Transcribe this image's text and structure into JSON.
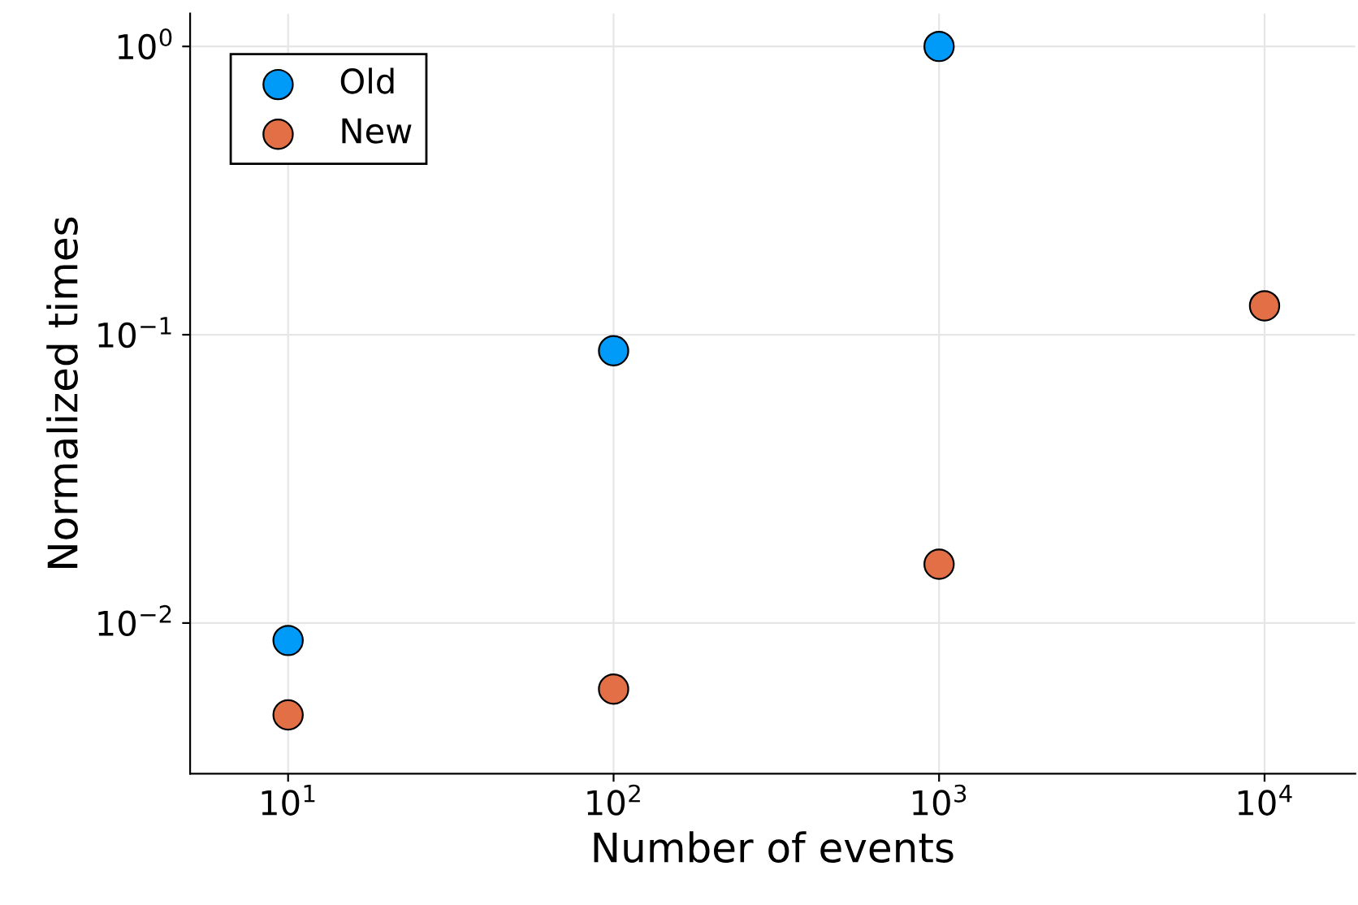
{
  "chart_data": {
    "type": "scatter",
    "xlabel": "Number of events",
    "ylabel": "Normalized times",
    "log": "xy",
    "xlim": [
      5,
      19000
    ],
    "ylim": [
      0.003,
      1.3
    ],
    "xticks": [
      {
        "value": 10,
        "label": "10$^{1}$"
      },
      {
        "value": 100,
        "label": "10$^{2}$"
      },
      {
        "value": 1000,
        "label": "10$^{3}$"
      },
      {
        "value": 10000,
        "label": "10$^{4}$"
      }
    ],
    "yticks": [
      {
        "value": 0.01,
        "label": "10$^{−2}$"
      },
      {
        "value": 0.1,
        "label": "10$^{−1}$"
      },
      {
        "value": 1,
        "label": "10$^{0}$"
      }
    ],
    "grid": true,
    "legend": "top left",
    "marker": "circle",
    "series": [
      {
        "name": "Old",
        "color": "#009af9",
        "x": [
          10,
          100,
          1000
        ],
        "values": [
          0.0087,
          0.088,
          1.0
        ]
      },
      {
        "name": "New",
        "color": "#e26f46",
        "x": [
          10,
          100,
          1000,
          10000
        ],
        "values": [
          0.0048,
          0.0059,
          0.016,
          0.126
        ]
      }
    ]
  }
}
